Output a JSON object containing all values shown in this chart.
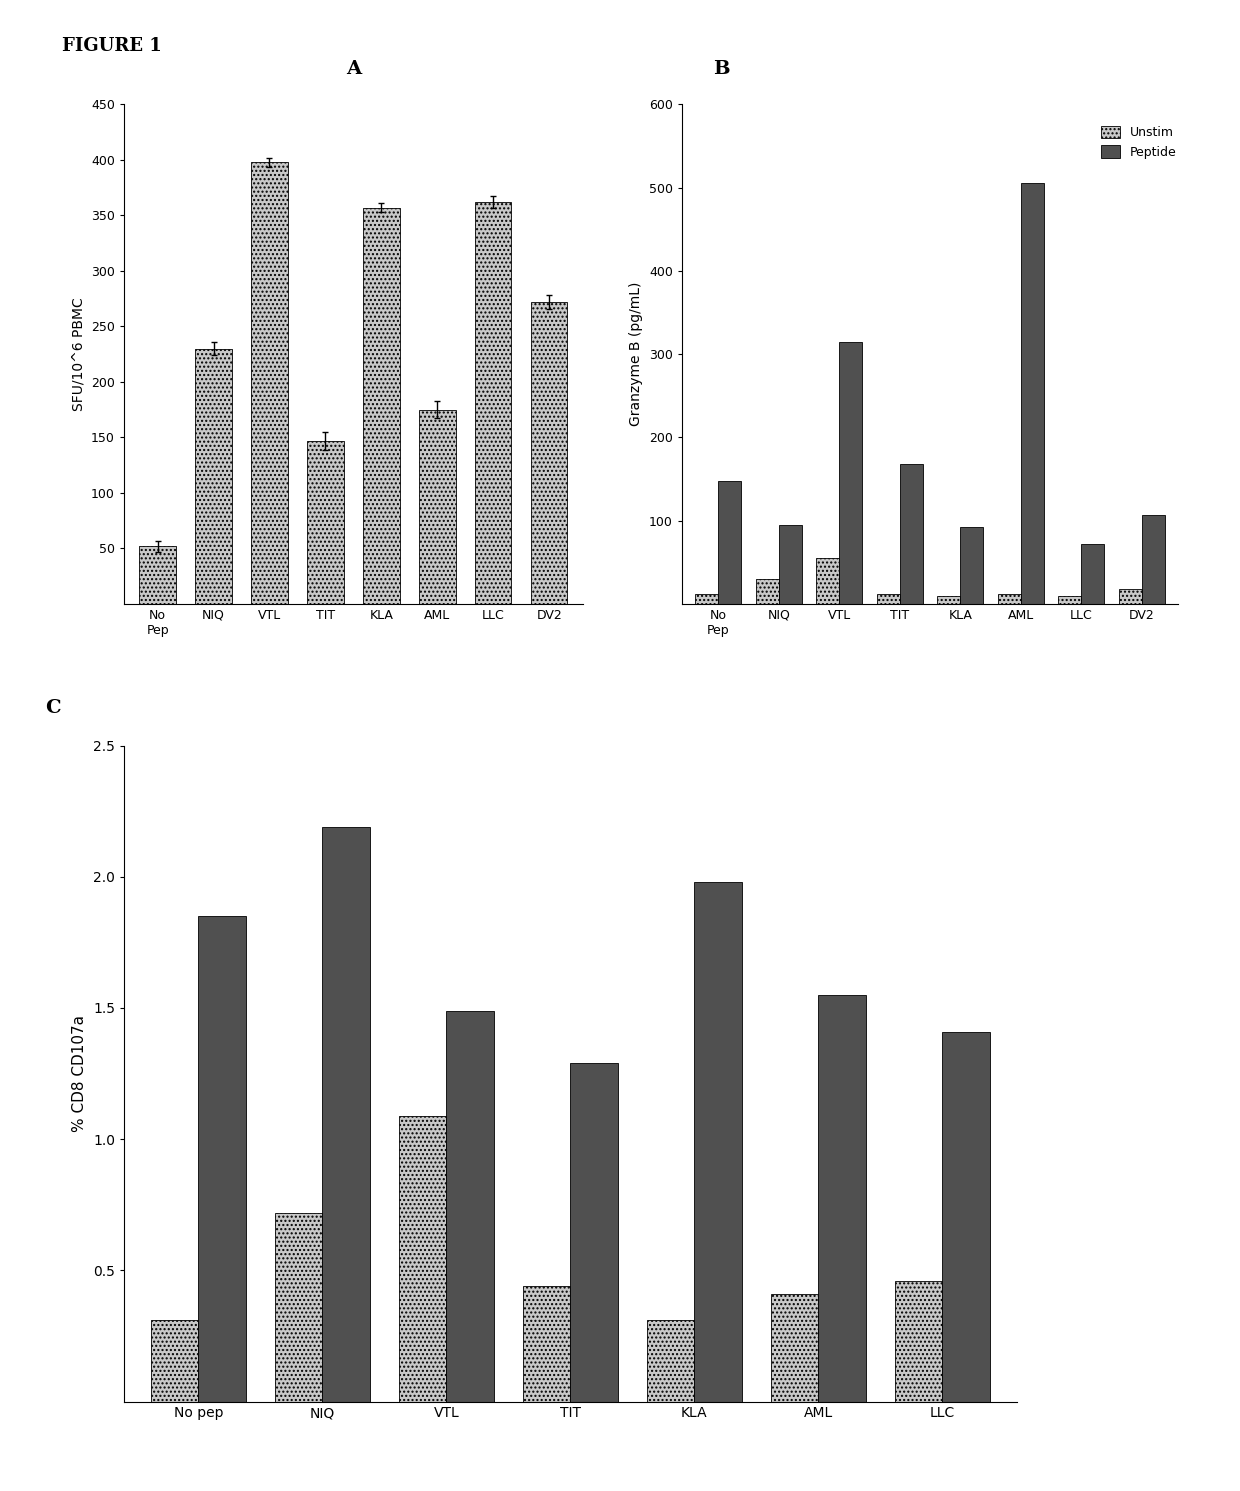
{
  "panel_A": {
    "categories": [
      "No\nPep",
      "NIQ",
      "VTL",
      "TIT",
      "KLA",
      "AML",
      "LLC",
      "DV2"
    ],
    "values": [
      52,
      230,
      398,
      147,
      357,
      175,
      362,
      272
    ],
    "errors": [
      5,
      6,
      4,
      8,
      4,
      8,
      5,
      6
    ],
    "ylabel": "SFU/10^6 PBMC",
    "ylim": [
      0,
      450
    ],
    "yticks": [
      50,
      100,
      150,
      200,
      250,
      300,
      350,
      400,
      450
    ],
    "bar_color": "#c8c8c8",
    "bar_hatch": "...."
  },
  "panel_B": {
    "categories": [
      "No\nPep",
      "NIQ",
      "VTL",
      "TIT",
      "KLA",
      "AML",
      "LLC",
      "DV2"
    ],
    "unstim": [
      12,
      30,
      55,
      12,
      10,
      12,
      10,
      18
    ],
    "peptide": [
      148,
      95,
      315,
      168,
      92,
      505,
      72,
      107
    ],
    "ylabel": "Granzyme B (pg/mL)",
    "ylim": [
      0,
      600
    ],
    "yticks": [
      100,
      200,
      300,
      400,
      500,
      600
    ],
    "unstim_color": "#c8c8c8",
    "peptide_color": "#505050",
    "legend_labels": [
      "Unstim",
      "Peptide"
    ]
  },
  "panel_C": {
    "categories": [
      "No pep",
      "NIQ",
      "VTL",
      "TIT",
      "KLA",
      "AML",
      "LLC"
    ],
    "unstim": [
      0.31,
      0.72,
      1.09,
      0.44,
      0.31,
      0.41,
      0.46
    ],
    "peptide": [
      1.85,
      2.19,
      1.49,
      1.29,
      1.98,
      1.55,
      1.41
    ],
    "ylabel": "% CD8 CD107a",
    "ylim": [
      0,
      2.5
    ],
    "yticks": [
      0.5,
      1.0,
      1.5,
      2.0,
      2.5
    ],
    "unstim_color": "#c8c8c8",
    "peptide_color": "#505050"
  },
  "figure_label_fontsize": 13,
  "panel_label_fontsize": 14,
  "axis_label_fontsize": 10,
  "tick_fontsize": 9,
  "background_color": "#ffffff"
}
